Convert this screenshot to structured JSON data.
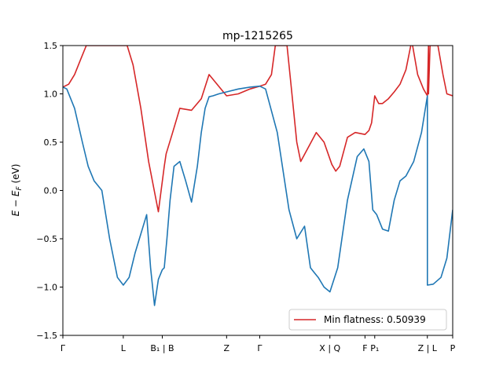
{
  "chart_data": {
    "type": "line",
    "title": "mp-1215265",
    "ylabel": "E − E",
    "ylabel_sub": "F",
    "ylabel_unit": " (eV)",
    "ylim": [
      -1.5,
      1.5
    ],
    "yticks": [
      1.5,
      1.0,
      0.5,
      0.0,
      -0.5,
      -1.0,
      -1.5
    ],
    "ytick_labels": [
      "1.5",
      "1.0",
      "0.5",
      "0.0",
      "−0.5",
      "−1.0",
      "−1.5"
    ],
    "xlim": [
      0,
      10
    ],
    "xticks": [
      {
        "pos": 0.0,
        "label": "Γ"
      },
      {
        "pos": 1.55,
        "label": "L"
      },
      {
        "pos": 2.55,
        "label": "B₁ | B"
      },
      {
        "pos": 4.2,
        "label": "Z"
      },
      {
        "pos": 5.05,
        "label": "Γ"
      },
      {
        "pos": 6.85,
        "label": "X | Q"
      },
      {
        "pos": 7.75,
        "label": "F"
      },
      {
        "pos": 8.0,
        "label": "P₁"
      },
      {
        "pos": 9.35,
        "label": "Z | L"
      },
      {
        "pos": 10.0,
        "label": "P"
      }
    ],
    "legend": {
      "position": "lower-right",
      "label": "Min flatness: 0.50939"
    },
    "colors": {
      "band_top": "#d62728",
      "band_bottom": "#1f77b4"
    },
    "series": [
      {
        "color": "#d62728",
        "x": [
          0.0,
          0.15,
          0.3,
          0.45,
          0.6,
          1.65,
          1.8,
          2.0,
          2.2,
          2.45,
          2.6,
          2.65,
          2.8,
          3.0,
          3.3,
          3.55,
          3.75,
          4.2,
          4.5,
          4.8,
          5.05,
          5.2,
          5.35,
          5.45,
          5.75,
          5.85,
          6.0,
          6.1,
          6.3,
          6.5,
          6.7,
          6.9,
          7.0,
          7.1,
          7.3,
          7.5,
          7.75,
          7.85,
          7.92,
          8.0,
          8.1,
          8.2,
          8.35,
          8.5,
          8.65,
          8.8,
          8.95,
          9.1,
          9.25,
          9.35,
          9.38,
          9.38,
          9.42,
          9.62,
          9.75,
          9.85,
          10.0
        ],
        "y": [
          1.07,
          1.1,
          1.2,
          1.35,
          1.5,
          1.5,
          1.3,
          0.85,
          0.3,
          -0.22,
          0.25,
          0.38,
          0.58,
          0.85,
          0.83,
          0.95,
          1.2,
          0.98,
          1.0,
          1.05,
          1.08,
          1.1,
          1.2,
          1.5,
          1.5,
          1.1,
          0.5,
          0.3,
          0.45,
          0.6,
          0.5,
          0.27,
          0.2,
          0.25,
          0.55,
          0.6,
          0.58,
          0.62,
          0.7,
          0.98,
          0.9,
          0.9,
          0.95,
          1.02,
          1.1,
          1.25,
          1.55,
          1.2,
          1.05,
          0.98,
          1.5,
          1.0,
          1.5,
          1.5,
          1.2,
          1.0,
          0.98
        ]
      },
      {
        "color": "#1f77b4",
        "x": [
          0.0,
          0.1,
          0.3,
          0.5,
          0.65,
          0.8,
          0.9,
          1.0,
          1.2,
          1.4,
          1.55,
          1.7,
          1.85,
          2.0,
          2.15,
          2.25,
          2.35,
          2.45,
          2.55,
          2.6,
          2.67,
          2.75,
          2.85,
          3.0,
          3.15,
          3.3,
          3.45,
          3.55,
          3.65,
          3.75,
          3.85,
          4.0,
          4.2,
          4.5,
          4.8,
          5.05,
          5.2,
          5.5,
          5.8,
          6.0,
          6.2,
          6.35,
          6.45,
          6.55,
          6.7,
          6.85,
          7.05,
          7.3,
          7.55,
          7.72,
          7.85,
          7.95,
          8.05,
          8.2,
          8.35,
          8.5,
          8.65,
          8.8,
          9.0,
          9.2,
          9.35,
          9.35,
          9.5,
          9.7,
          9.85,
          10.0
        ],
        "y": [
          1.07,
          1.05,
          0.85,
          0.5,
          0.25,
          0.1,
          0.05,
          0.0,
          -0.5,
          -0.9,
          -0.98,
          -0.9,
          -0.65,
          -0.45,
          -0.25,
          -0.8,
          -1.19,
          -0.92,
          -0.82,
          -0.8,
          -0.5,
          -0.1,
          0.25,
          0.3,
          0.1,
          -0.12,
          0.25,
          0.6,
          0.85,
          0.97,
          0.98,
          1.0,
          1.02,
          1.05,
          1.07,
          1.08,
          1.05,
          0.6,
          -0.2,
          -0.5,
          -0.37,
          -0.8,
          -0.85,
          -0.9,
          -1.0,
          -1.05,
          -0.8,
          -0.1,
          0.35,
          0.43,
          0.3,
          -0.2,
          -0.25,
          -0.4,
          -0.42,
          -0.1,
          0.1,
          0.15,
          0.3,
          0.6,
          0.98,
          -0.98,
          -0.97,
          -0.9,
          -0.7,
          -0.2
        ]
      }
    ]
  }
}
